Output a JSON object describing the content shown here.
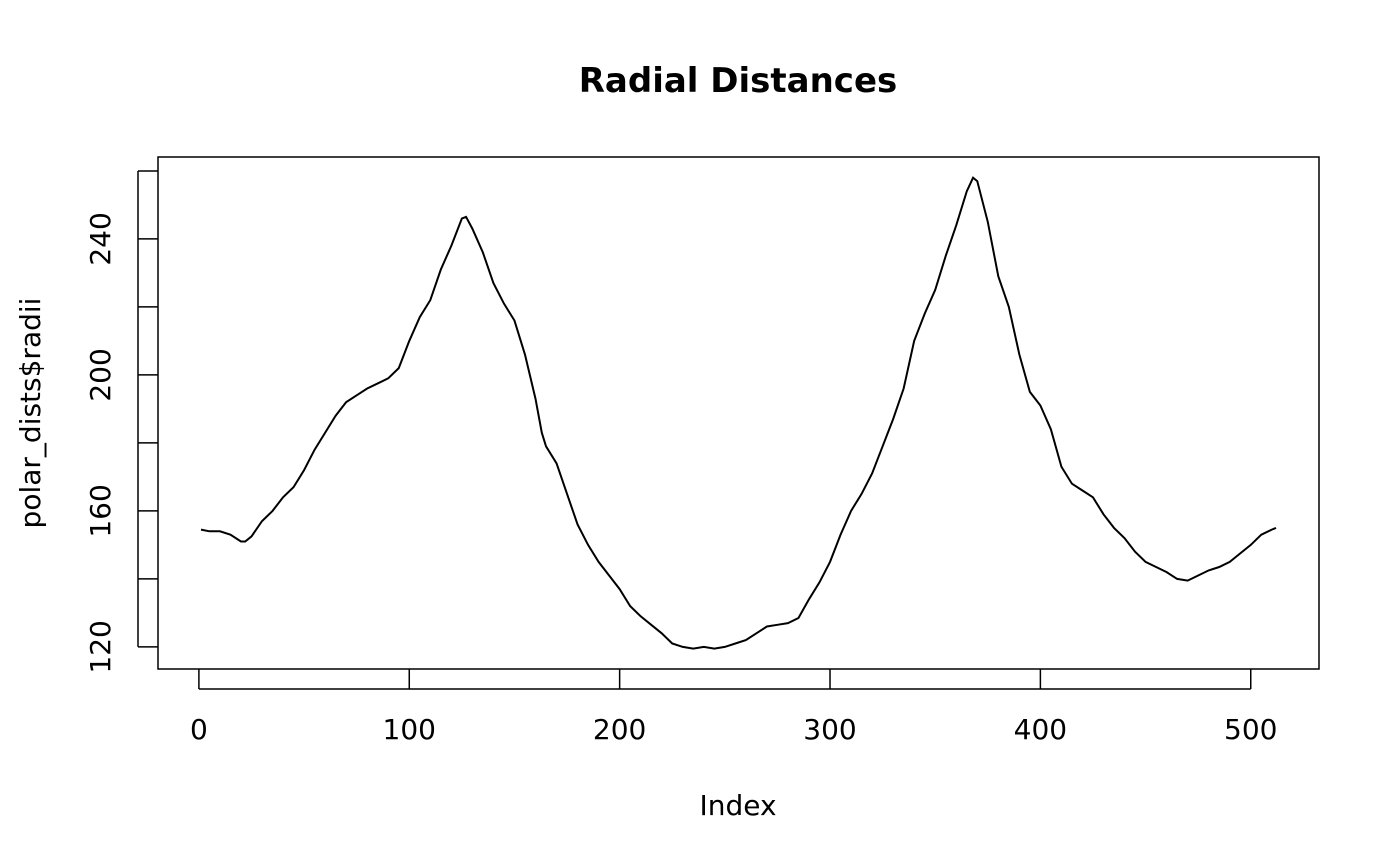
{
  "chart_data": {
    "type": "line",
    "title": "Radial Distances",
    "x_label": "Index",
    "y_label": "polar_dists$radii",
    "x": [
      1,
      5,
      10,
      15,
      20,
      22,
      25,
      30,
      35,
      40,
      45,
      50,
      55,
      60,
      65,
      70,
      75,
      80,
      85,
      90,
      95,
      100,
      105,
      110,
      115,
      120,
      125,
      127,
      130,
      135,
      140,
      145,
      150,
      155,
      160,
      163,
      165,
      170,
      175,
      180,
      185,
      190,
      195,
      200,
      205,
      210,
      215,
      220,
      225,
      230,
      235,
      240,
      245,
      250,
      255,
      260,
      265,
      270,
      275,
      280,
      285,
      290,
      295,
      300,
      305,
      310,
      315,
      320,
      325,
      330,
      335,
      340,
      345,
      350,
      355,
      360,
      365,
      368,
      370,
      375,
      380,
      385,
      390,
      395,
      400,
      405,
      410,
      415,
      420,
      425,
      430,
      435,
      440,
      445,
      450,
      455,
      460,
      465,
      470,
      475,
      480,
      485,
      490,
      495,
      500,
      505,
      510,
      512
    ],
    "values": [
      154.5,
      154,
      154,
      153,
      151,
      151,
      152.5,
      157,
      160,
      164,
      167,
      172,
      178,
      183,
      188,
      192,
      194,
      196,
      197.5,
      199,
      202,
      210,
      217,
      222,
      231,
      238,
      246,
      246.5,
      243,
      236,
      227,
      221,
      216,
      206,
      193,
      183,
      179,
      174,
      165,
      156,
      150,
      145,
      141,
      137,
      132,
      129,
      126.5,
      124,
      121,
      120,
      119.5,
      120,
      119.5,
      120,
      121,
      122,
      124,
      126,
      126.5,
      127,
      128.5,
      134,
      139,
      145,
      153,
      160,
      165,
      171,
      179,
      187,
      196,
      210,
      218,
      225,
      235,
      244,
      254,
      258,
      257,
      245,
      229,
      220,
      206,
      195,
      191,
      184,
      173,
      168,
      166,
      164,
      159,
      155,
      152,
      148,
      145,
      143.5,
      142,
      140,
      139.5,
      141,
      142.5,
      143.5,
      145,
      147.5,
      150,
      153,
      154.5,
      155
    ],
    "color": "#000000",
    "xlim": [
      -19.44,
      532.44
    ],
    "xticks": [
      0,
      100,
      200,
      300,
      400,
      500
    ],
    "ylim": [
      113.5,
      264.1
    ],
    "yticks": [
      120,
      {
        "value": 140,
        "label": null
      },
      160,
      {
        "value": 180,
        "label": null
      },
      200,
      {
        "value": 220,
        "label": null
      },
      240,
      {
        "value": 260,
        "label": null
      }
    ]
  }
}
